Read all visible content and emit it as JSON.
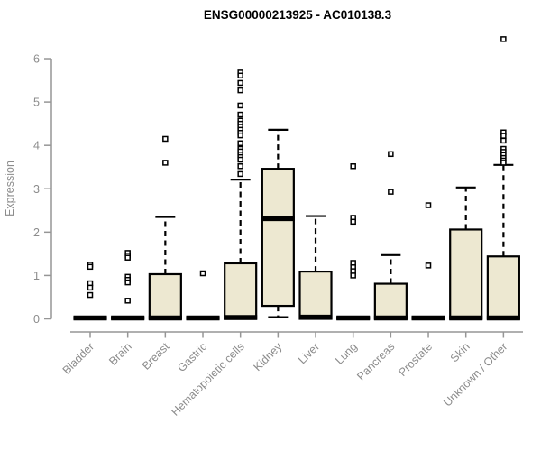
{
  "chart_data": {
    "type": "boxplot",
    "title": "ENSG00000213925 - AC010138.3",
    "xlabel": "",
    "ylabel": "Expression",
    "ylim": [
      0,
      6
    ],
    "yticks": [
      0,
      1,
      2,
      3,
      4,
      5,
      6
    ],
    "grid": false,
    "legend": false,
    "categories": [
      "Bladder",
      "Brain",
      "Breast",
      "Gastric",
      "Hematopoietic cells",
      "Kidney",
      "Liver",
      "Lung",
      "Pancreas",
      "Prostate",
      "Skin",
      "Unknown / Other"
    ],
    "series": [
      {
        "label": "Bladder",
        "whisker_low": 0,
        "q1": 0,
        "median": 0.02,
        "q3": 0.04,
        "whisker_high": 0.04,
        "outliers": [
          1.25,
          1.2,
          0.82,
          0.72,
          0.55
        ]
      },
      {
        "label": "Brain",
        "whisker_low": 0,
        "q1": 0,
        "median": 0.02,
        "q3": 0.04,
        "whisker_high": 0.04,
        "outliers": [
          1.52,
          1.46,
          1.41,
          0.97,
          0.9,
          0.84,
          0.42
        ]
      },
      {
        "label": "Breast",
        "whisker_low": 0,
        "q1": 0,
        "median": 0.02,
        "q3": 1.03,
        "whisker_high": 2.35,
        "outliers": [
          4.15,
          3.6
        ]
      },
      {
        "label": "Gastric",
        "whisker_low": 0,
        "q1": 0,
        "median": 0.02,
        "q3": 0.04,
        "whisker_high": 0.04,
        "outliers": [
          1.05
        ]
      },
      {
        "label": "Hematopoietic cells",
        "whisker_low": 0,
        "q1": 0,
        "median": 0.03,
        "q3": 1.28,
        "whisker_high": 3.21,
        "outliers": [
          5.68,
          5.61,
          5.44,
          5.27,
          4.92,
          4.71,
          4.57,
          4.5,
          4.43,
          4.36,
          4.29,
          4.23,
          4.05,
          3.92,
          3.86,
          3.79,
          3.73,
          3.67,
          3.52,
          3.34
        ]
      },
      {
        "label": "Kidney",
        "whisker_low": 0.04,
        "q1": 0.3,
        "median": 2.31,
        "q3": 3.46,
        "whisker_high": 4.36,
        "outliers": []
      },
      {
        "label": "Liver",
        "whisker_low": 0,
        "q1": 0,
        "median": 0.04,
        "q3": 1.09,
        "whisker_high": 2.37,
        "outliers": []
      },
      {
        "label": "Lung",
        "whisker_low": 0,
        "q1": 0,
        "median": 0.02,
        "q3": 0.04,
        "whisker_high": 0.04,
        "outliers": [
          3.52,
          2.33,
          2.24,
          1.29,
          1.19,
          1.1,
          1.0
        ]
      },
      {
        "label": "Pancreas",
        "whisker_low": 0,
        "q1": 0,
        "median": 0.02,
        "q3": 0.81,
        "whisker_high": 1.47,
        "outliers": [
          3.8,
          2.93
        ]
      },
      {
        "label": "Prostate",
        "whisker_low": 0,
        "q1": 0,
        "median": 0.02,
        "q3": 0.04,
        "whisker_high": 0.04,
        "outliers": [
          2.62,
          1.23
        ]
      },
      {
        "label": "Skin",
        "whisker_low": 0,
        "q1": 0,
        "median": 0.02,
        "q3": 2.06,
        "whisker_high": 3.03,
        "outliers": []
      },
      {
        "label": "Unknown / Other",
        "whisker_low": 0,
        "q1": 0,
        "median": 0.02,
        "q3": 1.44,
        "whisker_high": 3.55,
        "outliers": [
          6.45,
          4.3,
          4.22,
          4.11,
          3.92,
          3.85,
          3.78,
          3.71,
          3.65,
          3.6
        ]
      }
    ],
    "colors": {
      "box_fill": "#EDE8D1",
      "box_border": "#000000",
      "median": "#000000",
      "whisker": "#000000",
      "outlier_stroke": "#000000",
      "outlier_fill": "#ffffff",
      "axis": "#969696",
      "tick_text": "#8c8c8c",
      "title_text": "#000000",
      "background": "#ffffff"
    }
  }
}
